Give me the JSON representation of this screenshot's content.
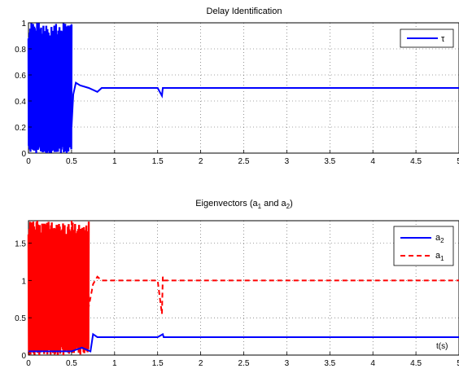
{
  "chart_data": [
    {
      "type": "line",
      "title": "Delay Identification",
      "xlabel": "",
      "ylabel": "",
      "xlim": [
        0,
        5
      ],
      "ylim": [
        0,
        1
      ],
      "x_ticks": [
        "0",
        "0.5",
        "1",
        "1.5",
        "2",
        "2.5",
        "3",
        "3.5",
        "4",
        "4.5",
        "5"
      ],
      "y_ticks": [
        "0",
        "0.2",
        "0.4",
        "0.6",
        "0.8",
        "1"
      ],
      "grid": true,
      "legend_position": "top-right",
      "series": [
        {
          "name": "τ",
          "color": "#0000ff",
          "style": "solid",
          "oscillation_band": {
            "x_range": [
              0.0,
              0.5
            ],
            "y_range": [
              0.0,
              1.0
            ]
          },
          "points": [
            [
              0.5,
              0.2
            ],
            [
              0.52,
              0.45
            ],
            [
              0.55,
              0.54
            ],
            [
              0.6,
              0.52
            ],
            [
              0.7,
              0.5
            ],
            [
              0.8,
              0.47
            ],
            [
              0.85,
              0.5
            ],
            [
              1.5,
              0.5
            ],
            [
              1.55,
              0.44
            ],
            [
              1.56,
              0.5
            ],
            [
              5.0,
              0.5
            ]
          ]
        }
      ]
    },
    {
      "type": "line",
      "title": "Eigenvectors (a",
      "title_parts": [
        "Eigenvectors (a",
        "1",
        " and a",
        "2",
        ")"
      ],
      "xlabel": "t(s)",
      "ylabel": "",
      "xlim": [
        0,
        5
      ],
      "ylim": [
        0,
        1.8
      ],
      "x_ticks": [
        "0",
        "0.5",
        "1",
        "1.5",
        "2",
        "2.5",
        "3",
        "3.5",
        "4",
        "4.5",
        "5"
      ],
      "y_ticks": [
        "0",
        "0.5",
        "1",
        "1.5"
      ],
      "grid": true,
      "legend_position": "top-right",
      "series": [
        {
          "name": "a",
          "subscript": "2",
          "color": "#0000ff",
          "style": "solid",
          "points": [
            [
              0.0,
              0.05
            ],
            [
              0.5,
              0.05
            ],
            [
              0.62,
              0.1
            ],
            [
              0.72,
              0.05
            ],
            [
              0.75,
              0.28
            ],
            [
              0.8,
              0.24
            ],
            [
              1.0,
              0.24
            ],
            [
              1.5,
              0.24
            ],
            [
              1.56,
              0.28
            ],
            [
              1.57,
              0.24
            ],
            [
              5.0,
              0.24
            ]
          ]
        },
        {
          "name": "a",
          "subscript": "1",
          "color": "#ff0000",
          "style": "dashed",
          "oscillation_band": {
            "x_range": [
              0.0,
              0.7
            ],
            "y_range": [
              0.0,
              1.8
            ]
          },
          "points": [
            [
              0.5,
              1.8
            ],
            [
              0.55,
              0.65
            ],
            [
              0.62,
              0.6
            ],
            [
              0.7,
              0.65
            ],
            [
              0.75,
              0.95
            ],
            [
              0.8,
              1.05
            ],
            [
              0.85,
              1.0
            ],
            [
              1.5,
              1.0
            ],
            [
              1.55,
              0.55
            ],
            [
              1.56,
              1.05
            ],
            [
              1.57,
              1.0
            ],
            [
              5.0,
              1.0
            ]
          ]
        }
      ]
    }
  ]
}
